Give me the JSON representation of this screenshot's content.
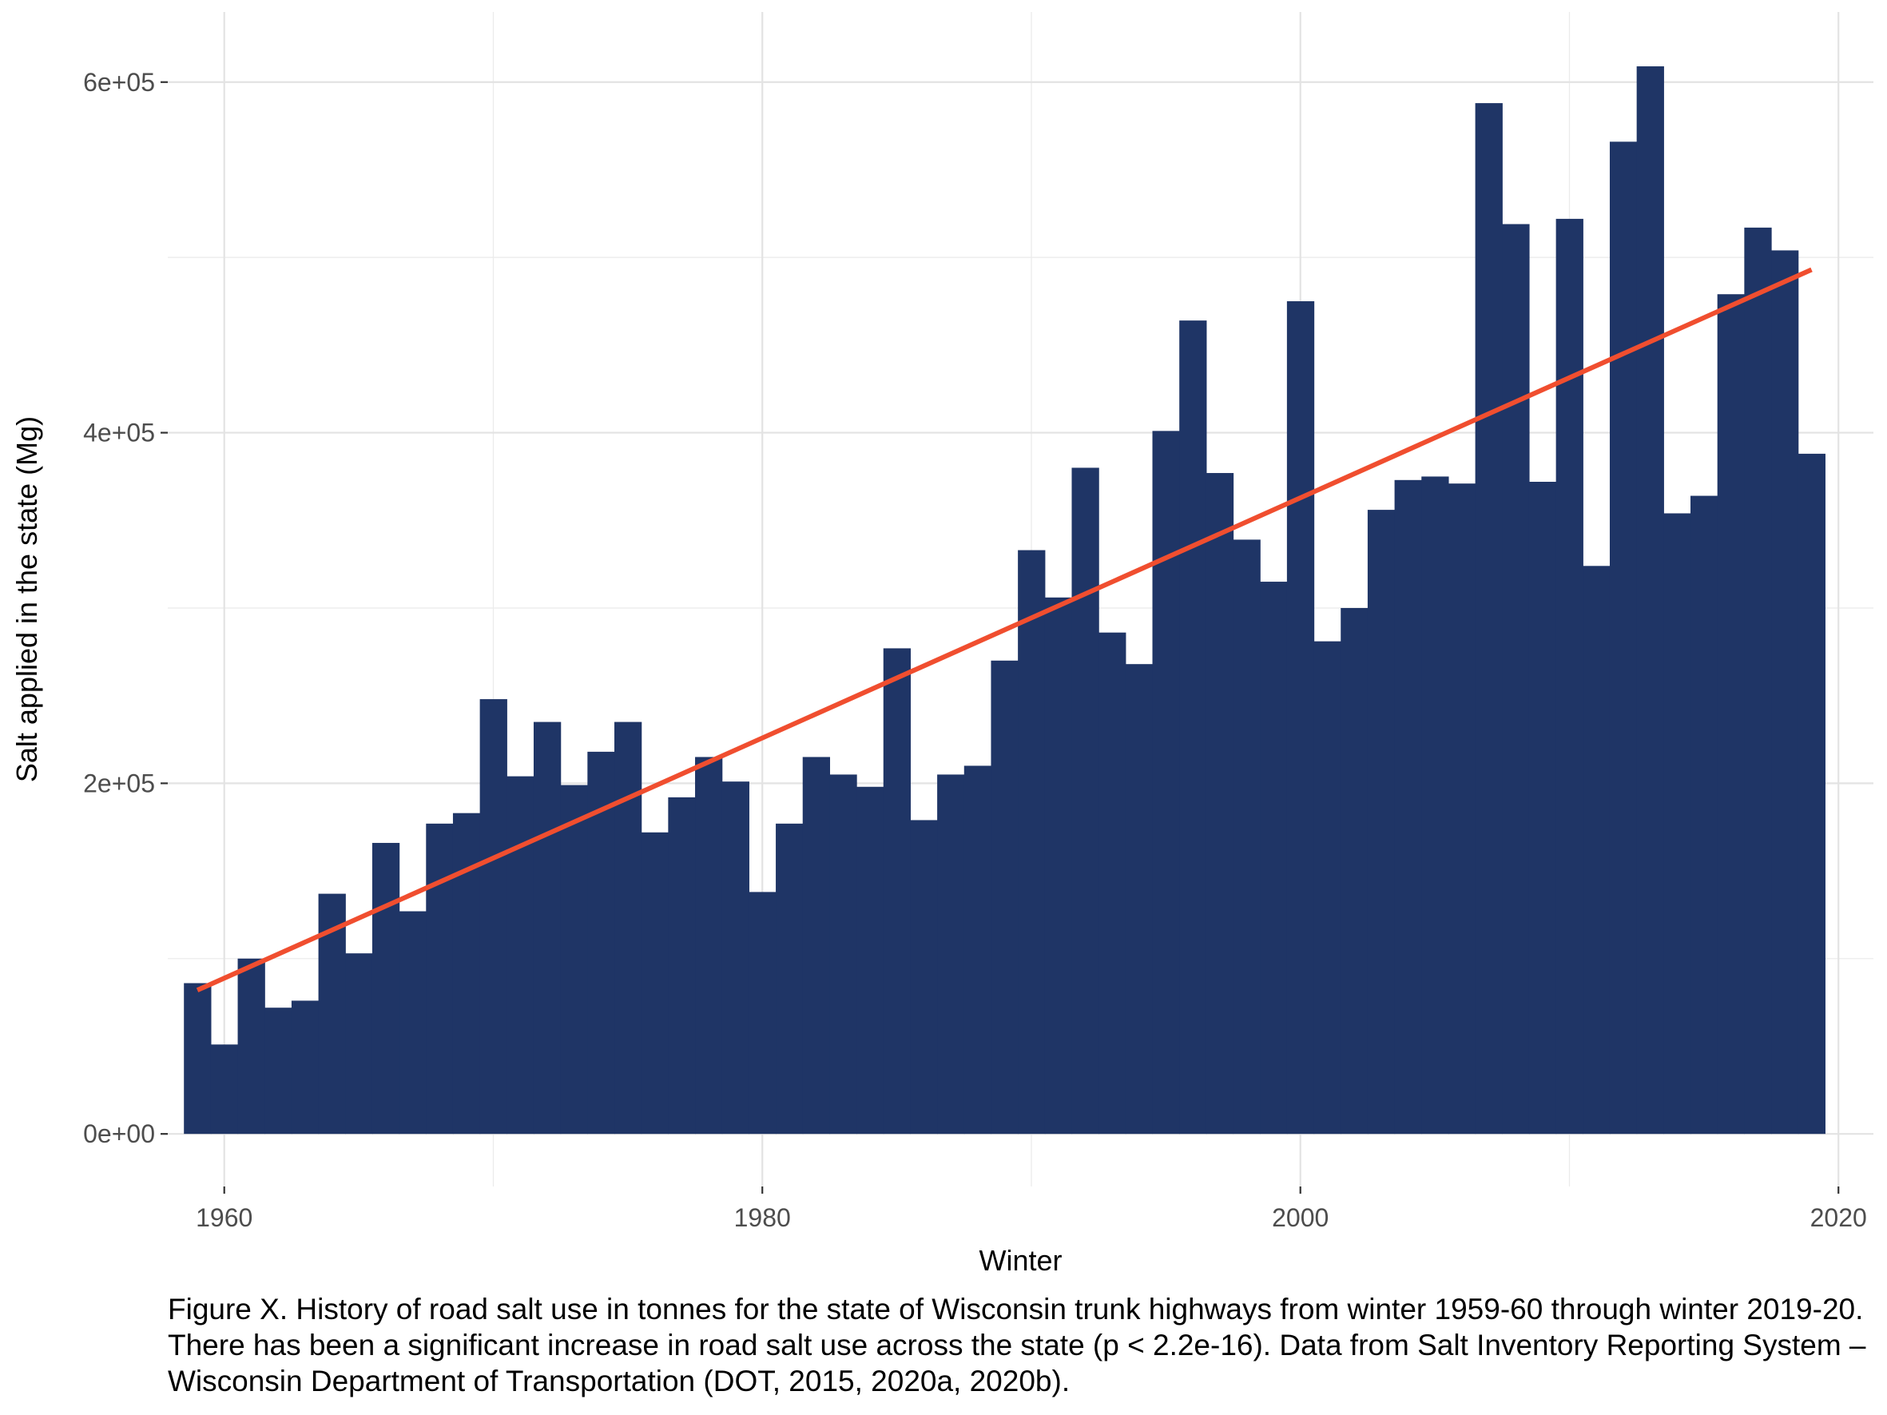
{
  "chart_data": {
    "type": "bar",
    "title": "",
    "xlabel": "Winter",
    "ylabel": "Salt applied in the state (Mg)",
    "x_ticks": [
      1960,
      1980,
      2000,
      2020
    ],
    "x_tick_labels": [
      "1960",
      "1980",
      "2000",
      "2020"
    ],
    "y_ticks": [
      0,
      200000,
      400000,
      600000
    ],
    "y_tick_labels": [
      "0e+00",
      "2e+05",
      "4e+05",
      "6e+05"
    ],
    "xlim": [
      1957.9,
      2021.3
    ],
    "ylim": [
      -30000,
      640000
    ],
    "grid": true,
    "bar_color": "#1f3566",
    "trend_color": "#f04e2f",
    "x": [
      1959,
      1960,
      1961,
      1962,
      1963,
      1964,
      1965,
      1966,
      1967,
      1968,
      1969,
      1970,
      1971,
      1972,
      1973,
      1974,
      1975,
      1976,
      1977,
      1978,
      1979,
      1980,
      1981,
      1982,
      1983,
      1984,
      1985,
      1986,
      1987,
      1988,
      1989,
      1990,
      1991,
      1992,
      1993,
      1994,
      1995,
      1996,
      1997,
      1998,
      1999,
      2000,
      2001,
      2002,
      2003,
      2004,
      2005,
      2006,
      2007,
      2008,
      2009,
      2010,
      2011,
      2012,
      2013,
      2014,
      2015,
      2016,
      2017,
      2018,
      2019
    ],
    "values": [
      86000,
      51000,
      100000,
      72000,
      76000,
      137000,
      103000,
      166000,
      127000,
      177000,
      183000,
      248000,
      204000,
      235000,
      199000,
      218000,
      235000,
      172000,
      192000,
      215000,
      201000,
      138000,
      177000,
      215000,
      205000,
      198000,
      277000,
      179000,
      205000,
      210000,
      270000,
      333000,
      306000,
      380000,
      286000,
      268000,
      401000,
      464000,
      377000,
      339000,
      315000,
      475000,
      281000,
      300000,
      356000,
      373000,
      375000,
      371000,
      588000,
      519000,
      372000,
      522000,
      324000,
      566000,
      609000,
      354000,
      364000,
      479000,
      517000,
      504000,
      388000
    ],
    "trend": {
      "x": [
        1959,
        2019
      ],
      "y": [
        82000,
        493000
      ]
    }
  },
  "caption": "Figure X. History of road salt use in tonnes for the state of Wisconsin trunk highways from winter 1959-60 through winter 2019-20. There has been a significant increase in road salt use across the state (p < 2.2e-16). Data from Salt Inventory Reporting System – Wisconsin Department of Transportation (DOT, 2015, 2020a, 2020b)."
}
